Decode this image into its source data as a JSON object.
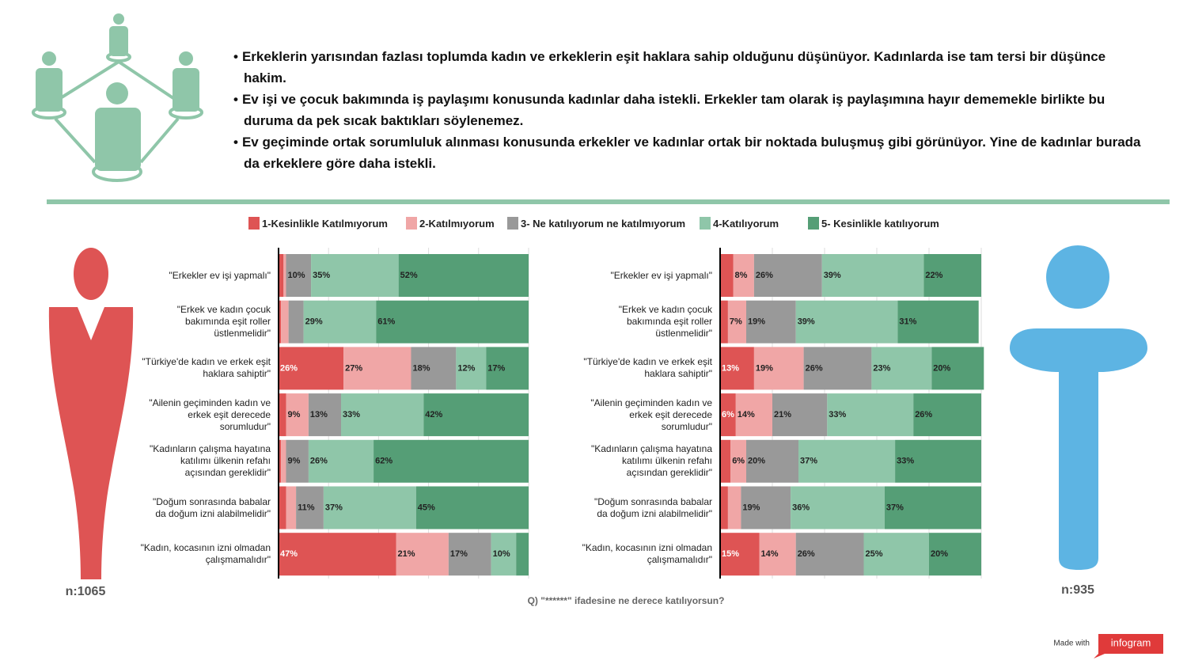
{
  "header": {
    "bullets": [
      "Erkeklerin yarısından fazlası toplumda kadın ve erkeklerin eşit haklara sahip olduğunu düşünüyor. Kadınlarda ise tam tersi bir düşünce hakim.",
      "Ev işi ve çocuk bakımında iş paylaşımı konusunda kadınlar daha istekli. Erkekler tam olarak iş paylaşımına hayır dememekle birlikte bu duruma da pek sıcak baktıkları söylenemez.",
      "Ev geçiminde ortak sorumluluk alınması konusunda erkekler ve kadınlar ortak bir noktada buluşmuş gibi görünüyor. Yine de kadınlar burada da erkeklere göre daha istekli."
    ]
  },
  "chart_data": [
    {
      "type": "stacked_barh",
      "sample_label": "n:1065",
      "categories": [
        "\"Erkekler ev işi yapmalı\"",
        "\"Erkek ve kadın çocuk bakımında eşit roller üstlenmelidir\"",
        "\"Türkiye'de kadın ve erkek eşit haklara sahiptir\"",
        "\"Ailenin geçiminden kadın ve erkek eşit derecede sorumludur\"",
        "\"Kadınların çalışma hayatına katılımı ülkenin refahı açısından gereklidir\"",
        "\"Doğum sonrasında babalar da doğum izni alabilmelidir\"",
        "\"Kadın, kocasının izni olmadan çalışmamalıdır\""
      ],
      "xlim": [
        0,
        100
      ],
      "xticks": [
        0,
        20,
        40,
        60,
        80,
        100
      ],
      "grid": true,
      "series": [
        {
          "name": "1-Kesinlikle Katılmıyorum",
          "color": "#de5454",
          "values": [
            2,
            1,
            26,
            3,
            1,
            3,
            47
          ],
          "value_labels": [
            null,
            null,
            "26%",
            null,
            null,
            null,
            "47%"
          ]
        },
        {
          "name": "2-Katılmıyorum",
          "color": "#f0a6a6",
          "values": [
            1,
            3,
            27,
            9,
            2,
            4,
            21
          ],
          "value_labels": [
            null,
            null,
            "27%",
            "9%",
            null,
            null,
            "21%"
          ]
        },
        {
          "name": "3- Ne katılıyorum ne katılmıyorum",
          "color": "#999999",
          "values": [
            10,
            6,
            18,
            13,
            9,
            11,
            17
          ],
          "value_labels": [
            "10%",
            null,
            "18%",
            "13%",
            "9%",
            "11%",
            "17%"
          ]
        },
        {
          "name": "4-Katılıyorum",
          "color": "#8fc6a9",
          "values": [
            35,
            29,
            12,
            33,
            26,
            37,
            10
          ],
          "value_labels": [
            "35%",
            "29%",
            "12%",
            "33%",
            "26%",
            "37%",
            "10%"
          ]
        },
        {
          "name": "5- Kesinlikle katılıyorum",
          "color": "#559e76",
          "values": [
            52,
            61,
            17,
            42,
            62,
            45,
            5
          ],
          "value_labels": [
            "52%",
            "61%",
            "17%",
            "42%",
            "62%",
            "45%",
            null
          ]
        }
      ]
    },
    {
      "type": "stacked_barh",
      "sample_label": "n:935",
      "categories": [
        "\"Erkekler ev işi yapmalı\"",
        "\"Erkek ve kadın çocuk bakımında eşit roller üstlenmelidir\"",
        "\"Türkiye'de kadın ve erkek eşit haklara sahiptir\"",
        "\"Ailenin geçiminden kadın ve erkek eşit derecede sorumludur\"",
        "\"Kadınların çalışma hayatına katılımı ülkenin refahı açısından gereklidir\"",
        "\"Doğum sonrasında babalar da doğum izni alabilmelidir\"",
        "\"Kadın, kocasının izni olmadan çalışmamalıdır\""
      ],
      "xlim": [
        0,
        100
      ],
      "xticks": [
        0,
        20,
        40,
        60,
        80,
        100
      ],
      "grid": true,
      "series": [
        {
          "name": "1-Kesinlikle Katılmıyorum",
          "color": "#de5454",
          "values": [
            5,
            3,
            13,
            6,
            4,
            3,
            15
          ],
          "value_labels": [
            null,
            null,
            "13%",
            "6%",
            null,
            null,
            "15%"
          ]
        },
        {
          "name": "2-Katılmıyorum",
          "color": "#f0a6a6",
          "values": [
            8,
            7,
            19,
            14,
            6,
            5,
            14
          ],
          "value_labels": [
            "8%",
            "7%",
            "19%",
            "14%",
            "6%",
            null,
            "14%"
          ]
        },
        {
          "name": "3- Ne katılıyorum ne katılmıyorum",
          "color": "#999999",
          "values": [
            26,
            19,
            26,
            21,
            20,
            19,
            26
          ],
          "value_labels": [
            "26%",
            "19%",
            "26%",
            "21%",
            "20%",
            "19%",
            "26%"
          ]
        },
        {
          "name": "4-Katılıyorum",
          "color": "#8fc6a9",
          "values": [
            39,
            39,
            23,
            33,
            37,
            36,
            25
          ],
          "value_labels": [
            "39%",
            "39%",
            "23%",
            "33%",
            "37%",
            "36%",
            "25%"
          ]
        },
        {
          "name": "5- Kesinlikle katılıyorum",
          "color": "#559e76",
          "values": [
            22,
            31,
            20,
            26,
            33,
            37,
            20
          ],
          "value_labels": [
            "22%",
            "31%",
            "20%",
            "26%",
            "33%",
            "37%",
            "20%"
          ]
        }
      ]
    }
  ],
  "footer": {
    "question": "Q) \"******\" ifadesine ne derece katılıyorsun?",
    "made_with": "Made with",
    "brand": "infogram"
  }
}
